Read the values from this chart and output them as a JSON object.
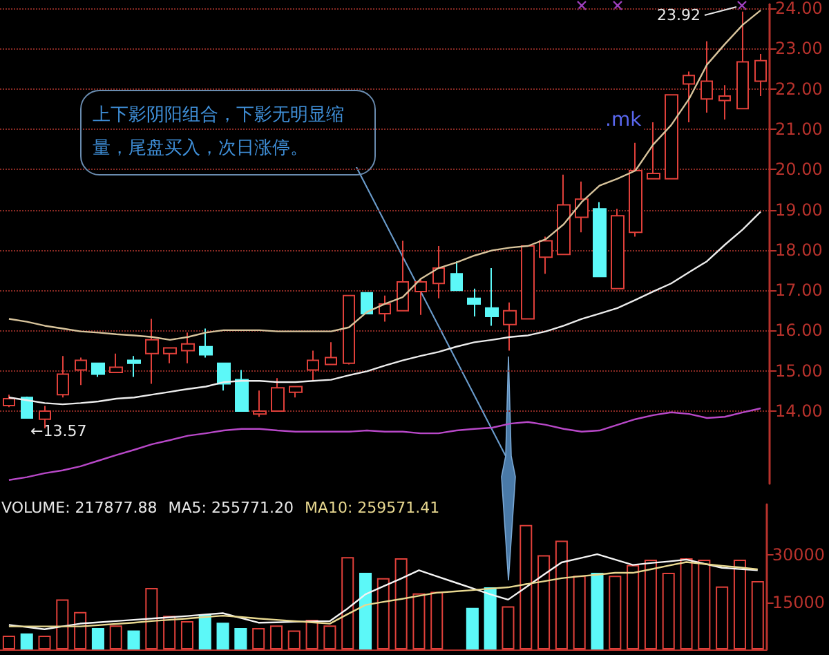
{
  "chart_data": [
    {
      "type": "candlestick",
      "categories": [
        null,
        null,
        null,
        null,
        null,
        null,
        null,
        null,
        null,
        null,
        null,
        null,
        null,
        null,
        null,
        null,
        null,
        null,
        null,
        null,
        null,
        null,
        null,
        null,
        null,
        null,
        null,
        null,
        null,
        null,
        null,
        null,
        null,
        null,
        null,
        null,
        null,
        null,
        null,
        null,
        null,
        null,
        null
      ],
      "ohlc": [
        [
          14.14,
          14.41,
          14.1,
          14.31
        ],
        [
          14.34,
          14.36,
          13.83,
          13.83
        ],
        [
          13.8,
          14.13,
          13.57,
          14.0
        ],
        [
          14.41,
          15.37,
          14.34,
          14.92
        ],
        [
          15.02,
          15.33,
          14.65,
          15.26
        ],
        [
          15.19,
          15.19,
          14.85,
          14.92
        ],
        [
          14.96,
          15.43,
          14.96,
          15.09
        ],
        [
          15.26,
          15.37,
          14.85,
          15.19
        ],
        [
          15.43,
          16.29,
          14.68,
          15.77
        ],
        [
          15.43,
          15.57,
          15.19,
          15.57
        ],
        [
          15.5,
          15.95,
          15.19,
          15.67
        ],
        [
          15.6,
          16.05,
          15.33,
          15.4
        ],
        [
          15.19,
          15.19,
          14.51,
          14.68
        ],
        [
          14.78,
          15.02,
          14.0,
          14.0
        ],
        [
          13.93,
          14.51,
          13.86,
          14.0
        ],
        [
          14.0,
          14.82,
          14.0,
          14.58
        ],
        [
          14.47,
          14.61,
          14.34,
          14.61
        ],
        [
          15.02,
          15.5,
          14.75,
          15.26
        ],
        [
          15.16,
          15.71,
          15.16,
          15.33
        ],
        [
          15.19,
          16.87,
          15.16,
          16.87
        ],
        [
          16.94,
          16.94,
          16.42,
          16.42
        ],
        [
          16.42,
          16.87,
          16.22,
          16.66
        ],
        [
          16.49,
          18.23,
          16.49,
          17.21
        ],
        [
          16.97,
          17.3,
          16.39,
          17.21
        ],
        [
          17.17,
          18.1,
          16.8,
          17.55
        ],
        [
          17.41,
          17.72,
          17.0,
          17.0
        ],
        [
          16.8,
          17.04,
          16.35,
          16.66
        ],
        [
          16.56,
          17.55,
          16.12,
          16.35
        ],
        [
          16.15,
          16.7,
          15.5,
          16.49
        ],
        [
          16.29,
          18.1,
          16.29,
          18.1
        ],
        [
          17.82,
          18.33,
          17.41,
          18.23
        ],
        [
          17.89,
          19.87,
          17.89,
          19.12
        ],
        [
          18.81,
          19.7,
          18.44,
          19.26
        ],
        [
          19.02,
          19.19,
          17.34,
          17.34
        ],
        [
          17.04,
          19.02,
          17.04,
          18.85
        ],
        [
          18.44,
          20.66,
          18.33,
          19.97
        ],
        [
          19.77,
          21.17,
          19.77,
          19.9
        ],
        [
          19.77,
          21.85,
          19.77,
          21.85
        ],
        [
          22.12,
          22.43,
          21.17,
          22.33
        ],
        [
          21.75,
          23.18,
          21.41,
          22.19
        ],
        [
          21.71,
          22.09,
          21.24,
          21.82
        ],
        [
          21.51,
          23.92,
          21.51,
          22.67
        ],
        [
          22.19,
          22.87,
          21.82,
          22.7
        ]
      ],
      "colors": [
        "#e0403a",
        "#5cf8f8",
        "#e0403a",
        "#e0403a",
        "#e0403a",
        "#5cf8f8",
        "#e0403a",
        "#5cf8f8",
        "#e0403a",
        "#e0403a",
        "#e0403a",
        "#5cf8f8",
        "#5cf8f8",
        "#5cf8f8",
        "#e0403a",
        "#e0403a",
        "#e0403a",
        "#e0403a",
        "#e0403a",
        "#e0403a",
        "#5cf8f8",
        "#e0403a",
        "#e0403a",
        "#e0403a",
        "#e0403a",
        "#5cf8f8",
        "#5cf8f8",
        "#5cf8f8",
        "#e0403a",
        "#e0403a",
        "#e0403a",
        "#e0403a",
        "#e0403a",
        "#5cf8f8",
        "#e0403a",
        "#e0403a",
        "#e0403a",
        "#e0403a",
        "#e0403a",
        "#e0403a",
        "#e0403a",
        "#e0403a",
        "#e0403a"
      ],
      "series": [
        {
          "type": "line",
          "color": "#d8c49c",
          "values": [
            16.29,
            16.22,
            16.12,
            16.05,
            15.98,
            15.95,
            15.91,
            15.88,
            15.84,
            15.77,
            15.84,
            15.95,
            16.01,
            16.01,
            16.01,
            15.98,
            15.98,
            15.98,
            15.98,
            16.08,
            16.46,
            16.66,
            16.83,
            17.28,
            17.55,
            17.69,
            17.86,
            17.99,
            18.06,
            18.1,
            18.27,
            18.64,
            19.19,
            19.6,
            19.77,
            19.97,
            20.62,
            21.1,
            21.75,
            22.6,
            23.11,
            23.59,
            23.95
          ]
        },
        {
          "type": "line",
          "color": "#ececec",
          "values": [
            14.34,
            14.27,
            14.2,
            14.17,
            14.2,
            14.24,
            14.31,
            14.34,
            14.41,
            14.48,
            14.55,
            14.61,
            14.72,
            14.75,
            14.75,
            14.72,
            14.72,
            14.75,
            14.78,
            14.89,
            14.99,
            15.13,
            15.26,
            15.37,
            15.47,
            15.6,
            15.71,
            15.77,
            15.84,
            15.88,
            15.98,
            16.12,
            16.29,
            16.42,
            16.56,
            16.76,
            16.97,
            17.17,
            17.45,
            17.72,
            18.13,
            18.51,
            18.95
          ]
        },
        {
          "type": "line",
          "color": "#b848c8",
          "values": [
            12.29,
            12.36,
            12.46,
            12.53,
            12.63,
            12.77,
            12.91,
            13.04,
            13.18,
            13.28,
            13.39,
            13.45,
            13.52,
            13.56,
            13.56,
            13.52,
            13.49,
            13.49,
            13.49,
            13.49,
            13.52,
            13.49,
            13.49,
            13.45,
            13.45,
            13.52,
            13.56,
            13.59,
            13.69,
            13.73,
            13.66,
            13.56,
            13.49,
            13.52,
            13.66,
            13.8,
            13.9,
            13.97,
            13.93,
            13.83,
            13.86,
            13.97,
            14.07
          ]
        }
      ],
      "ylim": [
        12.2,
        24.1
      ],
      "yticks": [
        {
          "value": 14,
          "label": "14.00"
        },
        {
          "value": 15,
          "label": "15.00"
        },
        {
          "value": 16,
          "label": "16.00"
        },
        {
          "value": 17,
          "label": "17.00"
        },
        {
          "value": 18,
          "label": "18.00"
        },
        {
          "value": 19,
          "label": "19.00"
        },
        {
          "value": 20,
          "label": "20.00"
        },
        {
          "value": 21,
          "label": "21.00"
        },
        {
          "value": 22,
          "label": "22.00"
        },
        {
          "value": 23,
          "label": "23.00"
        },
        {
          "value": 24,
          "label": "24.00"
        }
      ],
      "grid": "y",
      "tick_labels": "y",
      "marker": "none",
      "annotations": [
        "上下影阴阳组合，下影无明显缩量，尾盘买入，次日涨停。",
        ".mk",
        "23.92",
        "←13.57"
      ]
    },
    {
      "type": "bar",
      "categories": [
        null,
        null,
        null,
        null,
        null,
        null,
        null,
        null,
        null,
        null,
        null,
        null,
        null,
        null,
        null,
        null,
        null,
        null,
        null,
        null,
        null,
        null,
        null,
        null,
        null,
        null,
        null,
        null,
        null,
        null,
        null,
        null,
        null,
        null,
        null,
        null,
        null,
        null,
        null,
        null,
        null,
        null,
        null
      ],
      "series": [
        {
          "type": "bar",
          "colors": [
            "#e0403a",
            "#5cf8f8",
            "#e0403a",
            "#e0403a",
            "#e0403a",
            "#5cf8f8",
            "#e0403a",
            "#5cf8f8",
            "#e0403a",
            "#e0403a",
            "#e0403a",
            "#5cf8f8",
            "#5cf8f8",
            "#5cf8f8",
            "#e0403a",
            "#e0403a",
            "#e0403a",
            "#e0403a",
            "#e0403a",
            "#e0403a",
            "#5cf8f8",
            "#e0403a",
            "#e0403a",
            "#e0403a",
            "#e0403a",
            "#5cf8f8",
            "#5cf8f8",
            "#5cf8f8",
            "#e0403a",
            "#e0403a",
            "#e0403a",
            "#e0403a",
            "#e0403a",
            "#5cf8f8",
            "#e0403a",
            "#e0403a",
            "#e0403a",
            "#e0403a",
            "#e0403a",
            "#e0403a",
            "#e0403a",
            "#e0403a",
            "#e0403a"
          ],
          "values": [
            4400,
            5100,
            4400,
            15900,
            11900,
            6800,
            7600,
            6000,
            19500,
            10700,
            9000,
            11000,
            8500,
            6800,
            6800,
            7600,
            6000,
            9400,
            7600,
            29300,
            24300,
            22600,
            28900,
            17800,
            18300,
            null,
            13200,
            19700,
            13700,
            39500,
            29900,
            34500,
            23400,
            24300,
            23400,
            26800,
            28500,
            24300,
            28900,
            28500,
            20000,
            28500,
            21700
          ]
        },
        {
          "type": "line",
          "color": "#f4f4f4",
          "values": [
            7800,
            7100,
            6400,
            7300,
            8200,
            8600,
            9000,
            9400,
            9800,
            10200,
            10600,
            11100,
            11500,
            10000,
            8500,
            8600,
            8800,
            8900,
            9000,
            13000,
            17500,
            20000,
            22500,
            25100,
            23200,
            21300,
            19400,
            17500,
            15800,
            19700,
            23700,
            27600,
            28900,
            30200,
            28500,
            26800,
            27400,
            27900,
            28500,
            27200,
            25900,
            25500,
            25100
          ]
        },
        {
          "type": "line",
          "color": "#e8d890",
          "values": [
            7300,
            7300,
            7300,
            7300,
            7300,
            7700,
            8100,
            8500,
            9000,
            9400,
            9800,
            10300,
            10700,
            10300,
            9800,
            9400,
            9000,
            8600,
            8200,
            11200,
            14100,
            15100,
            16000,
            17000,
            18000,
            18400,
            18800,
            19300,
            19700,
            20700,
            21600,
            22600,
            23200,
            23700,
            24300,
            24300,
            25400,
            26600,
            27700,
            27100,
            26500,
            26000,
            25400
          ]
        }
      ],
      "ylim": [
        0,
        46000
      ],
      "yticks": [
        15000,
        30000
      ],
      "tick_labels": "y",
      "marker": "none",
      "annotations": [
        "VOLUME: 217877.88",
        "MA5: 255771.20",
        "MA10: 259571.41"
      ]
    }
  ]
}
